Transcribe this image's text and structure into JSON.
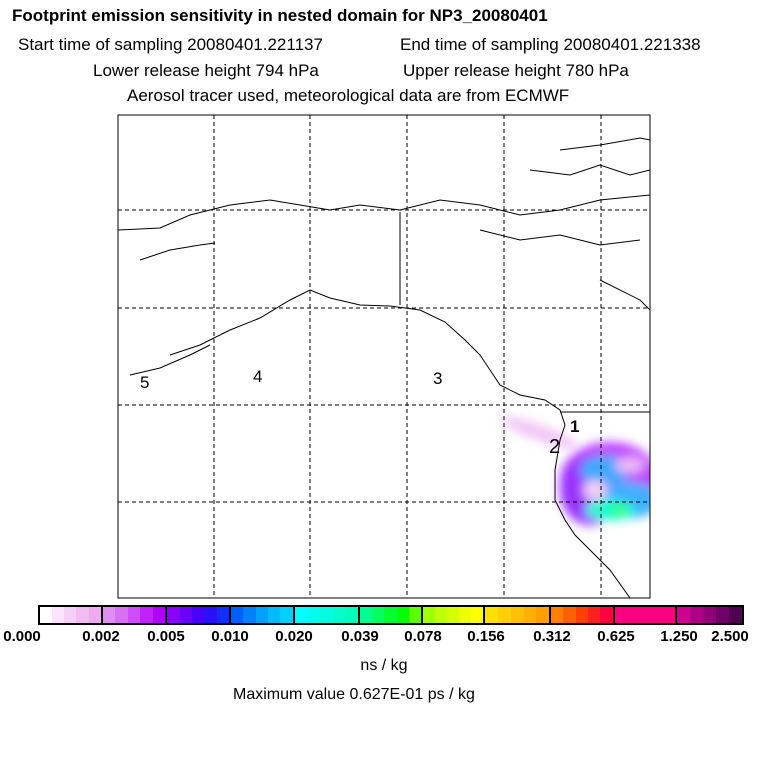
{
  "header": {
    "title": "Footprint emission sensitivity in nested domain for NP3_20080401",
    "start_label": "Start time of sampling 20080401.221137",
    "end_label": "End time of sampling 20080401.221338",
    "lower_label": "Lower release height  794 hPa",
    "upper_label": "Upper release height  780 hPa",
    "tracer_label": "Aerosol tracer used, meteorological data are from ECMWF"
  },
  "map": {
    "markers": [
      "5",
      "4",
      "3",
      "2",
      "1"
    ]
  },
  "colorbar": {
    "ticks": [
      "0.000",
      "0.002",
      "0.005",
      "0.010",
      "0.020",
      "0.039",
      "0.078",
      "0.156",
      "0.312",
      "0.625",
      "1.250",
      "2.500"
    ],
    "segments": [
      [
        "#ffffff",
        "#fbe4fb",
        "#f6d0f6",
        "#f2bcf2",
        "#eeaaee"
      ],
      [
        "#e08ff0",
        "#d870f4",
        "#cc4ef8",
        "#c020fc",
        "#b000ff"
      ],
      [
        "#8a00ff",
        "#6a00ff",
        "#4a00ff",
        "#2a10ff",
        "#1030ff"
      ],
      [
        "#0060ff",
        "#0080ff",
        "#00a0ff",
        "#00baff",
        "#00d0ff"
      ],
      [
        "#00ffff",
        "#00ffee",
        "#00ffdd",
        "#00ffcc",
        "#00ffb8"
      ],
      [
        "#00ff90",
        "#00ff60",
        "#00ff30",
        "#00ff00",
        "#60ff00"
      ],
      [
        "#a0ff00",
        "#c0ff00",
        "#d8ff00",
        "#eeff00",
        "#ffff00"
      ],
      [
        "#ffe000",
        "#ffd000",
        "#ffc000",
        "#ffb000",
        "#ffa000"
      ],
      [
        "#ff8000",
        "#ff6000",
        "#ff4000",
        "#ff2020",
        "#ff0040"
      ],
      [
        "#ff0080",
        "#ff0080",
        "#ff0080",
        "#ff0080",
        "#ff0080"
      ],
      [
        "#d00090",
        "#b00088",
        "#900078",
        "#700068",
        "#500050"
      ]
    ],
    "unit": "ns / kg",
    "max_label": "Maximum value  0.627E-01 ps / kg"
  }
}
